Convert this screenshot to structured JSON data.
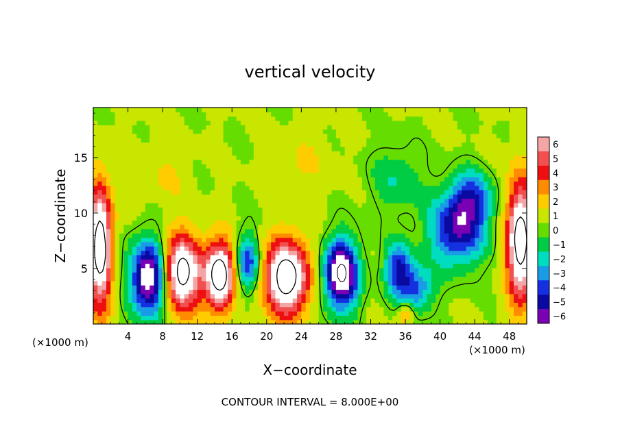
{
  "chart_data": {
    "type": "heatmap",
    "title": "vertical velocity",
    "xlabel": "X−coordinate",
    "ylabel": "Z−coordinate",
    "x_units_left": "(×1000 m)",
    "x_units_right": "(×1000 m)",
    "xlim": [
      0,
      50
    ],
    "ylim": [
      0,
      19.5
    ],
    "x_ticks": [
      4,
      8,
      12,
      16,
      20,
      24,
      28,
      32,
      36,
      40,
      44,
      48
    ],
    "y_ticks": [
      5,
      10,
      15
    ],
    "footer": "CONTOUR INTERVAL = 8.000E+00",
    "colorbar": {
      "levels": [
        6,
        5,
        4,
        3,
        2,
        1,
        0,
        -1,
        -2,
        -3,
        -4,
        -5,
        -6
      ],
      "labels": [
        "6",
        "5",
        "4",
        "3",
        "2",
        "1",
        "0",
        "−1",
        "−2",
        "−3",
        "−4",
        "−5",
        "−6"
      ],
      "colors": [
        "#f4a6a6",
        "#f25050",
        "#ee1010",
        "#ff8c00",
        "#ffcc00",
        "#c8e600",
        "#66dd00",
        "#00cc44",
        "#00dcc0",
        "#1a9be6",
        "#1430e0",
        "#0a0aa0",
        "#7a00b4"
      ]
    },
    "features": [
      {
        "cx": 0.8,
        "cz": 7.0,
        "v": 9,
        "rx": 1.4,
        "rz": 5.5
      },
      {
        "cx": 6.6,
        "cz": 4.2,
        "v": -9,
        "rx": 2.2,
        "rz": 3.4
      },
      {
        "cx": 10.0,
        "cz": 4.6,
        "v": 9,
        "rx": 2.4,
        "rz": 3.4
      },
      {
        "cx": 14.6,
        "cz": 4.4,
        "v": 9,
        "rx": 1.7,
        "rz": 3.1
      },
      {
        "cx": 17.8,
        "cz": 5.5,
        "v": -5,
        "rx": 1.4,
        "rz": 2.6
      },
      {
        "cx": 22.3,
        "cz": 4.2,
        "v": 9,
        "rx": 2.6,
        "rz": 3.4
      },
      {
        "cx": 28.6,
        "cz": 4.5,
        "v": -9,
        "rx": 2.0,
        "rz": 3.1
      },
      {
        "cx": 35.2,
        "cz": 5.0,
        "v": -5,
        "rx": 1.6,
        "rz": 2.4
      },
      {
        "cx": 37.3,
        "cz": 3.2,
        "v": -4,
        "rx": 2.0,
        "rz": 2.1
      },
      {
        "cx": 42.0,
        "cz": 8.5,
        "v": -6,
        "rx": 3.2,
        "rz": 3.2
      },
      {
        "cx": 43.6,
        "cz": 11.5,
        "v": -4,
        "rx": 2.4,
        "rz": 2.4
      },
      {
        "cx": 35.0,
        "cz": 13.0,
        "v": -2,
        "rx": 3.0,
        "rz": 3.0
      },
      {
        "cx": 49.3,
        "cz": 7.5,
        "v": 9,
        "rx": 1.6,
        "rz": 5.5
      },
      {
        "cx": 36.0,
        "cz": 1.0,
        "v": 3,
        "rx": 0.9,
        "rz": 1.0
      },
      {
        "cx": 24.0,
        "cz": 14.5,
        "v": 1,
        "rx": 3.5,
        "rz": 3.0
      },
      {
        "cx": 8.0,
        "cz": 13.5,
        "v": 1,
        "rx": 3.0,
        "rz": 3.0
      }
    ]
  }
}
